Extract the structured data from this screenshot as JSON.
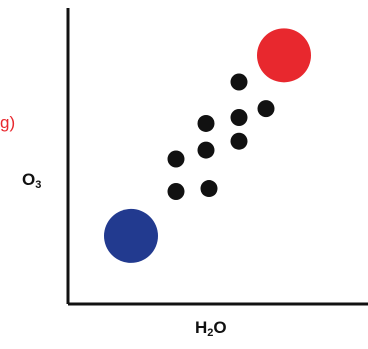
{
  "chart_data": {
    "type": "scatter",
    "title": "",
    "xlabel": {
      "main": "H",
      "sub": "2",
      "rest": "O"
    },
    "ylabel": {
      "main": "O",
      "sub": "3"
    },
    "cut_off_label": "g)",
    "xlim": [
      0,
      10
    ],
    "ylim": [
      0,
      10
    ],
    "grid": false,
    "points": [
      {
        "x": 3.6,
        "y": 3.8
      },
      {
        "x": 4.7,
        "y": 3.9
      },
      {
        "x": 3.6,
        "y": 4.9
      },
      {
        "x": 4.6,
        "y": 5.2
      },
      {
        "x": 5.7,
        "y": 5.5
      },
      {
        "x": 4.6,
        "y": 6.1
      },
      {
        "x": 5.7,
        "y": 6.3
      },
      {
        "x": 6.6,
        "y": 6.6
      },
      {
        "x": 5.7,
        "y": 7.5
      }
    ],
    "highlights": [
      {
        "x": 2.1,
        "y": 2.3,
        "color": "#223a8f",
        "size": "large"
      },
      {
        "x": 7.2,
        "y": 8.4,
        "color": "#e8282e",
        "size": "large"
      }
    ],
    "colors": {
      "points": "#111111",
      "axis": "#111111"
    }
  }
}
